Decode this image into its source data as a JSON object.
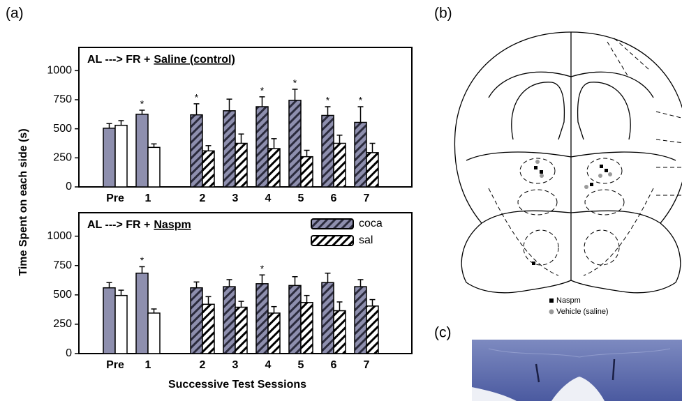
{
  "figure": {
    "panel_labels": [
      "(a)",
      "(b)",
      "(c)"
    ],
    "ylabel": "Time Spent on each side (s)",
    "xlabel": "Successive Test Sessions"
  },
  "chart_data": [
    {
      "type": "bar",
      "title_parts": [
        "AL ---> FR +",
        "Saline (control)"
      ],
      "categories": [
        "Pre",
        "1",
        "2",
        "3",
        "4",
        "5",
        "6",
        "7"
      ],
      "hatch": [
        false,
        false,
        true,
        true,
        true,
        true,
        true,
        true
      ],
      "series": [
        {
          "color": "#8e8fae",
          "values": [
            505,
            625,
            620,
            655,
            690,
            745,
            615,
            555
          ],
          "errors": [
            40,
            35,
            95,
            100,
            85,
            95,
            75,
            135
          ]
        },
        {
          "color": "#ffffff",
          "values": [
            530,
            340,
            310,
            375,
            330,
            260,
            375,
            295
          ],
          "errors": [
            40,
            30,
            45,
            80,
            85,
            55,
            70,
            80
          ]
        }
      ],
      "significance": [
        null,
        "*",
        "*",
        null,
        "*",
        "*",
        "*",
        "*"
      ],
      "ylim": [
        0,
        1200
      ],
      "yticks": [
        0,
        250,
        500,
        750,
        1000
      ],
      "legend": false
    },
    {
      "type": "bar",
      "title_parts": [
        "AL ---> FR +",
        "Naspm"
      ],
      "categories": [
        "Pre",
        "1",
        "2",
        "3",
        "4",
        "5",
        "6",
        "7"
      ],
      "hatch": [
        false,
        false,
        true,
        true,
        true,
        true,
        true,
        true
      ],
      "series": [
        {
          "name": "coca",
          "color": "#8e8fae",
          "values": [
            560,
            685,
            560,
            570,
            595,
            580,
            605,
            570
          ],
          "errors": [
            45,
            55,
            50,
            60,
            75,
            75,
            80,
            60
          ]
        },
        {
          "name": "sal",
          "color": "#ffffff",
          "values": [
            495,
            345,
            420,
            395,
            345,
            435,
            365,
            405
          ],
          "errors": [
            45,
            35,
            65,
            50,
            55,
            60,
            75,
            55
          ]
        }
      ],
      "significance": [
        null,
        "*",
        null,
        null,
        "*",
        null,
        null,
        null
      ],
      "ylim": [
        0,
        1200
      ],
      "yticks": [
        0,
        250,
        500,
        750,
        1000
      ],
      "legend": true
    }
  ],
  "diagram": {
    "legend": [
      {
        "label": "Naspm",
        "color": "#000000"
      },
      {
        "label": "Vehicle (saline)",
        "color": "#999999"
      }
    ]
  }
}
